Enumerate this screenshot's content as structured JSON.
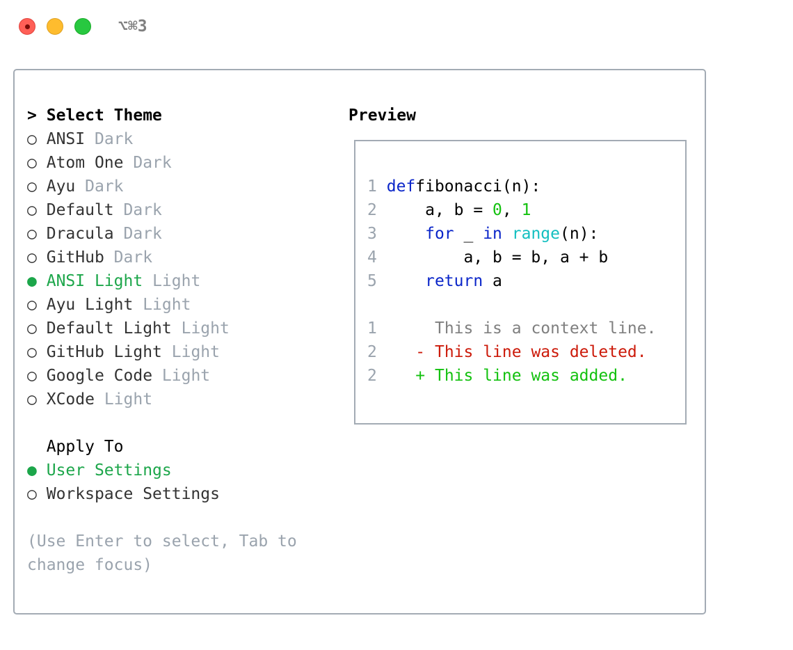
{
  "window": {
    "title": "⌥⌘3"
  },
  "theme_section": {
    "prompt": ">",
    "title": "Select Theme",
    "items": [
      {
        "marker": "○",
        "name": "ANSI",
        "type": "Dark",
        "selected": false
      },
      {
        "marker": "○",
        "name": "Atom One",
        "type": "Dark",
        "selected": false
      },
      {
        "marker": "○",
        "name": "Ayu",
        "type": "Dark",
        "selected": false
      },
      {
        "marker": "○",
        "name": "Default",
        "type": "Dark",
        "selected": false
      },
      {
        "marker": "○",
        "name": "Dracula",
        "type": "Dark",
        "selected": false
      },
      {
        "marker": "○",
        "name": "GitHub",
        "type": "Dark",
        "selected": false
      },
      {
        "marker": "●",
        "name": "ANSI Light",
        "type": "Light",
        "selected": true
      },
      {
        "marker": "○",
        "name": "Ayu Light",
        "type": "Light",
        "selected": false
      },
      {
        "marker": "○",
        "name": "Default Light",
        "type": "Light",
        "selected": false
      },
      {
        "marker": "○",
        "name": "GitHub Light",
        "type": "Light",
        "selected": false
      },
      {
        "marker": "○",
        "name": "Google Code",
        "type": "Light",
        "selected": false
      },
      {
        "marker": "○",
        "name": "XCode",
        "type": "Light",
        "selected": false
      }
    ]
  },
  "apply_section": {
    "title": "Apply To",
    "items": [
      {
        "marker": "●",
        "name": "User Settings",
        "selected": true
      },
      {
        "marker": "○",
        "name": "Workspace Settings",
        "selected": false
      }
    ]
  },
  "hint": "(Use Enter to select, Tab to change focus)",
  "preview": {
    "title": "Preview",
    "code": [
      {
        "n": "1",
        "parts": [
          [
            "kw",
            "def"
          ],
          [
            "",
            "fibonacci(n):"
          ]
        ]
      },
      {
        "n": "2",
        "parts": [
          [
            "",
            "    a, b = "
          ],
          [
            "num",
            "0"
          ],
          [
            "",
            ", "
          ],
          [
            "num",
            "1"
          ]
        ]
      },
      {
        "n": "3",
        "parts": [
          [
            "kw",
            "    for"
          ],
          [
            "",
            " _ "
          ],
          [
            "kw",
            "in"
          ],
          [
            "",
            " "
          ],
          [
            "bi",
            "range"
          ],
          [
            "",
            "(n):"
          ]
        ]
      },
      {
        "n": "4",
        "parts": [
          [
            "",
            "        a, b = b, a + b"
          ]
        ]
      },
      {
        "n": "5",
        "parts": [
          [
            "kw",
            "    return"
          ],
          [
            "",
            " a"
          ]
        ]
      }
    ],
    "diff": [
      {
        "n": "1",
        "kind": "ctx",
        "sign": " ",
        "text": "This is a context line."
      },
      {
        "n": "2",
        "kind": "del",
        "sign": "-",
        "text": "This line was deleted."
      },
      {
        "n": "2",
        "kind": "add",
        "sign": "+",
        "text": "This line was added."
      }
    ]
  },
  "colors": {
    "selected": "#1ca64a",
    "keyword": "#0b26c9",
    "number": "#13c10f",
    "builtin": "#13bfc0",
    "deleted": "#cc1a0a",
    "added": "#13c10f"
  }
}
